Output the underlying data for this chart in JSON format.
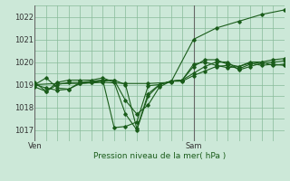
{
  "background_color": "#cce8d8",
  "grid_color": "#88bb99",
  "line_color": "#1a5c1a",
  "xlabel": "Pression niveau de la mer( hPa )",
  "ylim": [
    1016.5,
    1022.5
  ],
  "yticks": [
    1017,
    1018,
    1019,
    1020,
    1021,
    1022
  ],
  "xlim": [
    0,
    22
  ],
  "ven_x": 0,
  "sam_x": 14,
  "n_xticks_minor": 22,
  "series": [
    [
      0,
      1019.0,
      1,
      1019.3,
      2,
      1018.85,
      3,
      1018.8,
      4,
      1019.05,
      5,
      1019.1,
      6,
      1019.15,
      7,
      1019.2,
      8,
      1019.0,
      9,
      1017.05,
      10,
      1018.6,
      11,
      1019.0,
      12,
      1019.15,
      13,
      1019.15,
      14,
      1019.4,
      15,
      1019.6,
      16,
      1019.8,
      17,
      1019.85,
      18,
      1019.7,
      19,
      1019.9,
      20,
      1020.0,
      21,
      1019.85,
      22,
      1019.9
    ],
    [
      0,
      1019.0,
      1,
      1018.85,
      2,
      1018.75,
      3,
      1018.8,
      4,
      1019.1,
      5,
      1019.15,
      6,
      1019.2,
      7,
      1019.2,
      8,
      1018.3,
      9,
      1017.7,
      10,
      1018.1,
      11,
      1018.9,
      12,
      1019.15,
      13,
      1019.2,
      14,
      1019.5,
      15,
      1019.8,
      16,
      1020.0,
      17,
      1020.0,
      18,
      1019.65,
      19,
      1019.8,
      20,
      1019.95,
      21,
      1020.0,
      22,
      1020.05
    ],
    [
      0,
      1019.1,
      1,
      1018.7,
      2,
      1019.1,
      3,
      1019.2,
      4,
      1019.2,
      5,
      1019.2,
      6,
      1019.3,
      7,
      1019.1,
      8,
      1017.7,
      9,
      1017.0,
      10,
      1018.5,
      11,
      1019.0,
      12,
      1019.15,
      13,
      1019.2,
      14,
      1019.8,
      15,
      1020.1,
      16,
      1020.1,
      17,
      1019.9,
      18,
      1019.8,
      19,
      1020.0,
      20,
      1020.0,
      21,
      1020.1,
      22,
      1020.15
    ],
    [
      0,
      1018.9,
      1,
      1018.7,
      2,
      1019.0,
      3,
      1019.1,
      4,
      1019.1,
      5,
      1019.1,
      6,
      1019.2,
      7,
      1017.1,
      8,
      1017.15,
      9,
      1017.35,
      10,
      1018.95,
      11,
      1019.0,
      12,
      1019.15,
      13,
      1019.2,
      14,
      1019.9,
      15,
      1020.0,
      16,
      1019.85,
      17,
      1019.75,
      18,
      1019.8,
      19,
      1019.95,
      20,
      1019.85,
      21,
      1019.9,
      22,
      1019.85
    ],
    [
      0,
      1019.0,
      2,
      1019.05,
      4,
      1019.05,
      6,
      1019.1,
      8,
      1019.05,
      10,
      1019.05,
      12,
      1019.1,
      14,
      1021.0,
      16,
      1021.5,
      18,
      1021.8,
      20,
      1022.1,
      22,
      1022.3
    ]
  ]
}
